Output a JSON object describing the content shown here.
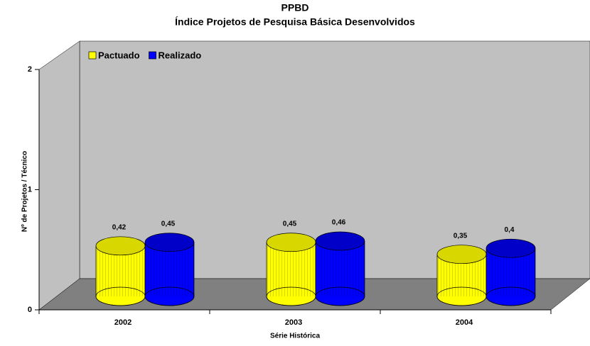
{
  "chart_data": {
    "type": "bar3d",
    "title": "PPBD",
    "subtitle": "Índice Projetos de Pesquisa Básica Desenvolvidos",
    "x_label": "Série Histórica",
    "y_label": "Nº de Projetos / Técnico",
    "categories": [
      "2002",
      "2003",
      "2004"
    ],
    "series": [
      {
        "name": "Pactuado",
        "color": "#ffff00",
        "values": [
          0.42,
          0.45,
          0.35
        ],
        "value_labels": [
          "0,42",
          "0,45",
          "0,35"
        ]
      },
      {
        "name": "Realizado",
        "color": "#0000ff",
        "values": [
          0.45,
          0.46,
          0.4
        ],
        "value_labels": [
          "0,45",
          "0,46",
          "0,4"
        ]
      }
    ],
    "ylim": [
      0,
      2
    ],
    "yticks": [
      0,
      1,
      2
    ],
    "legend": "top-left"
  }
}
